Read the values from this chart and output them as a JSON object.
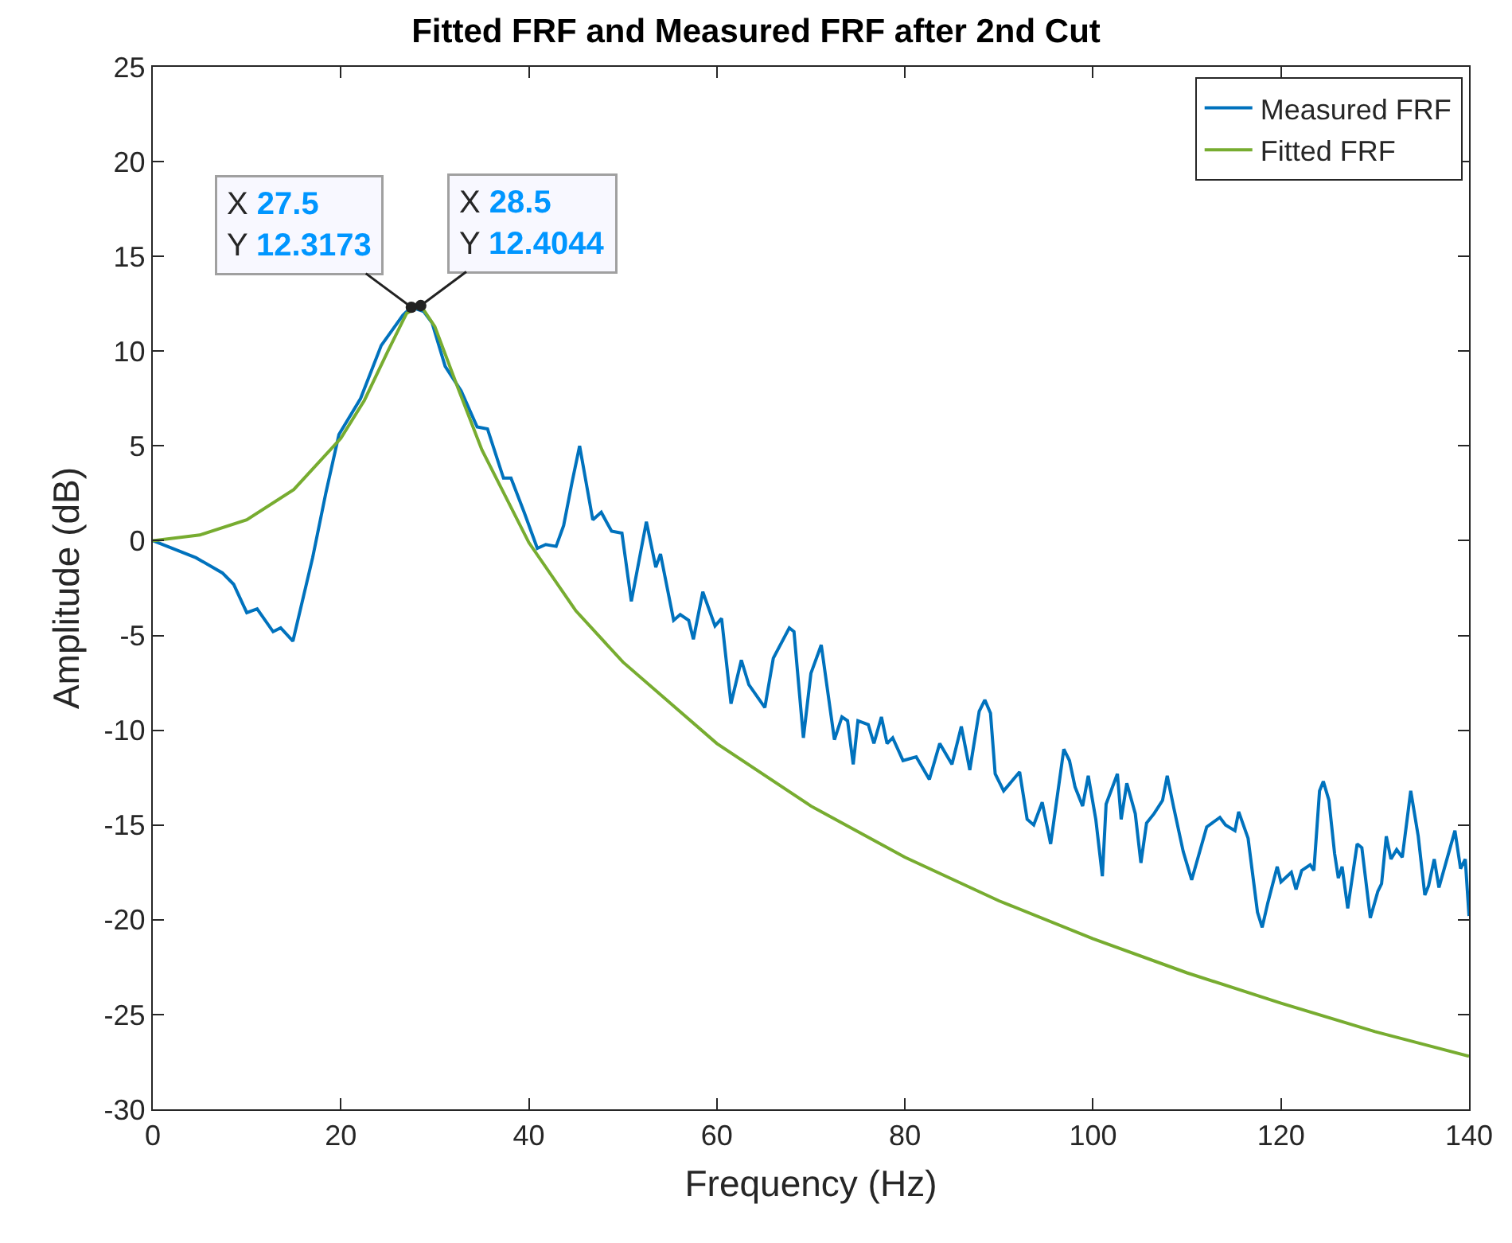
{
  "chart_data": {
    "type": "line",
    "title": "Fitted FRF and Measured FRF after 2nd Cut",
    "xlabel": "Frequency (Hz)",
    "ylabel": "Amplitude (dB)",
    "xlim": [
      0,
      140
    ],
    "xticks": [
      0,
      20,
      40,
      60,
      80,
      100,
      120,
      140
    ],
    "ylim": [
      -30,
      25
    ],
    "yticks": [
      -30,
      -25,
      -20,
      -15,
      -10,
      -5,
      0,
      5,
      10,
      15,
      20,
      25
    ],
    "grid": false,
    "legend": "top right",
    "marker": "none",
    "line_style": "solid",
    "series": [
      {
        "name": "Measured FRF",
        "color": "#0072bd",
        "x": [
          0,
          4.6,
          7.4,
          8.6,
          10,
          11.1,
          12.8,
          13.6,
          14.9,
          17,
          18.4,
          19.8,
          22.1,
          24.3,
          26.6,
          27.5,
          28.8,
          29.7,
          31.1,
          32.8,
          34.5,
          35.6,
          37.3,
          38.1,
          39.5,
          40.9,
          41.8,
          42.9,
          43.7,
          44.6,
          45.4,
          46.8,
          47.7,
          48.8,
          49.9,
          50.9,
          52.5,
          53.5,
          54,
          55.4,
          56.1,
          57,
          57.5,
          58.5,
          59.8,
          60.5,
          61.5,
          62.6,
          63.4,
          65.1,
          66,
          67.7,
          68.2,
          69.2,
          70,
          71.1,
          72.5,
          73.3,
          73.9,
          74.5,
          75,
          76.1,
          76.7,
          77.5,
          78.1,
          78.7,
          79.8,
          81.2,
          82.6,
          83.7,
          85,
          86,
          86.9,
          87.9,
          88.5,
          89.1,
          89.6,
          90.5,
          92.2,
          93,
          93.7,
          94.6,
          95.5,
          96.9,
          97.5,
          98.1,
          98.9,
          99.5,
          100.3,
          101,
          101.4,
          102.6,
          103,
          103.6,
          104.5,
          105.1,
          105.7,
          106.5,
          107.4,
          107.9,
          108.6,
          109.6,
          110.5,
          112.1,
          113.5,
          114.1,
          115.1,
          115.5,
          116.5,
          117.5,
          118,
          118.6,
          119.6,
          120,
          121.1,
          121.6,
          122.2,
          123.1,
          123.5,
          124.1,
          124.5,
          125.1,
          125.7,
          126.1,
          126.5,
          127.1,
          128.1,
          128.6,
          129.5,
          130.3,
          130.7,
          131.2,
          131.7,
          132.3,
          132.9,
          133.8,
          134.6,
          135.3,
          135.7,
          136.3,
          136.8,
          138.5,
          139.1,
          139.6,
          140
        ],
        "values": [
          0,
          -0.9,
          -1.7,
          -2.3,
          -3.8,
          -3.6,
          -4.8,
          -4.6,
          -5.3,
          -0.9,
          2.5,
          5.6,
          7.5,
          10.3,
          11.9,
          12.3173,
          12.1,
          11.5,
          9.2,
          7.9,
          6,
          5.9,
          3.3,
          3.3,
          1.5,
          -0.4,
          -0.2,
          -0.3,
          0.8,
          3.1,
          5,
          1.1,
          1.5,
          0.5,
          0.4,
          -3.2,
          1,
          -1.4,
          -0.7,
          -4.2,
          -3.9,
          -4.2,
          -5.2,
          -2.7,
          -4.5,
          -4.1,
          -8.6,
          -6.3,
          -7.6,
          -8.8,
          -6.2,
          -4.6,
          -4.8,
          -10.4,
          -7,
          -5.5,
          -10.5,
          -9.3,
          -9.5,
          -11.8,
          -9.5,
          -9.7,
          -10.7,
          -9.3,
          -10.7,
          -10.4,
          -11.6,
          -11.4,
          -12.6,
          -10.7,
          -11.8,
          -9.8,
          -12.1,
          -9,
          -8.4,
          -9.1,
          -12.3,
          -13.2,
          -12.2,
          -14.7,
          -15,
          -13.8,
          -16,
          -11,
          -11.6,
          -13,
          -14,
          -12.4,
          -14.7,
          -17.7,
          -13.9,
          -12.3,
          -14.7,
          -12.8,
          -14.4,
          -17,
          -14.9,
          -14.4,
          -13.7,
          -12.4,
          -14.1,
          -16.4,
          -17.9,
          -15.1,
          -14.6,
          -15,
          -15.3,
          -14.3,
          -15.7,
          -19.6,
          -20.4,
          -19.1,
          -17.2,
          -18,
          -17.5,
          -18.4,
          -17.4,
          -17.1,
          -17.4,
          -13.2,
          -12.7,
          -13.7,
          -16.5,
          -17.8,
          -17.2,
          -19.4,
          -16,
          -16.2,
          -19.9,
          -18.5,
          -18.1,
          -15.6,
          -16.8,
          -16.3,
          -16.7,
          -13.2,
          -15.6,
          -18.7,
          -18.2,
          -16.8,
          -18.3,
          -15.3,
          -17.3,
          -16.8,
          -19.8
        ]
      },
      {
        "name": "Fitted FRF",
        "color": "#77ac30",
        "x": [
          0,
          5,
          10,
          15,
          20,
          22.5,
          25,
          27,
          28.5,
          30,
          32.5,
          35,
          40,
          45,
          50,
          60,
          70,
          80,
          90,
          100,
          110,
          120,
          130,
          140
        ],
        "values": [
          0,
          0.3,
          1.1,
          2.7,
          5.4,
          7.4,
          10,
          12,
          12.4044,
          11.3,
          8,
          4.8,
          -0.1,
          -3.7,
          -6.4,
          -10.7,
          -14,
          -16.7,
          -19,
          -21,
          -22.8,
          -24.4,
          -25.9,
          -27.2
        ]
      }
    ],
    "annotations": [
      {
        "text": "X 27.5\nY 12.3173",
        "x": 27.5,
        "y": 12.3173
      },
      {
        "text": "X 28.5\nY 12.4044",
        "x": 28.5,
        "y": 12.4044
      }
    ]
  }
}
